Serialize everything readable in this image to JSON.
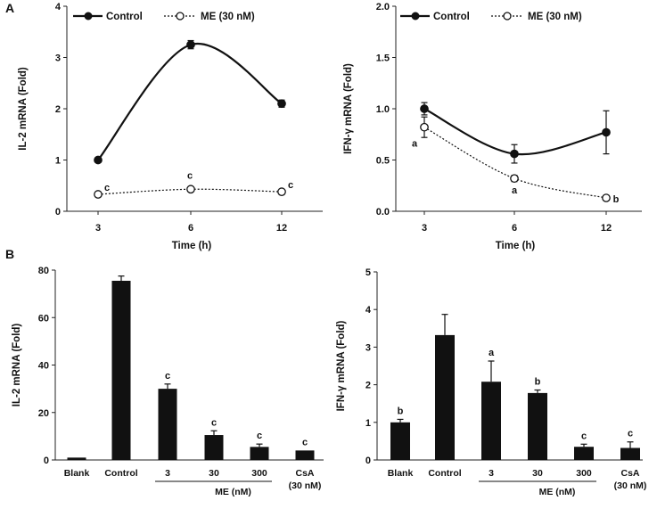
{
  "panel_labels": [
    "A",
    "B"
  ],
  "chart_data": [
    {
      "id": "a-left",
      "type": "line",
      "ylabel": "IL-2 mRNA (Fold)",
      "xlabel": "Time (h)",
      "x": [
        3,
        6,
        12
      ],
      "x_ticks": [
        "3",
        "6",
        "12"
      ],
      "ylim": [
        0,
        4
      ],
      "y_ticks": [
        "0",
        "1",
        "2",
        "3",
        "4"
      ],
      "legend": [
        "Control",
        "ME (30 nM)"
      ],
      "series": [
        {
          "name": "Control",
          "values": [
            1.0,
            3.25,
            2.1
          ],
          "errors": [
            0.05,
            0.08,
            0.07
          ],
          "labels": [
            "",
            "",
            ""
          ],
          "style": "solid-filled"
        },
        {
          "name": "ME (30 nM)",
          "values": [
            0.33,
            0.43,
            0.38
          ],
          "errors": [
            0.03,
            0.03,
            0.03
          ],
          "labels": [
            "c",
            "c",
            "c"
          ],
          "style": "dotted-open"
        }
      ]
    },
    {
      "id": "a-right",
      "type": "line",
      "ylabel": "IFN-γ mRNA (Fold)",
      "xlabel": "Time (h)",
      "x": [
        3,
        6,
        12
      ],
      "x_ticks": [
        "3",
        "6",
        "12"
      ],
      "ylim": [
        0,
        2.0
      ],
      "y_ticks": [
        "0.0",
        "0.5",
        "1.0",
        "1.5",
        "2.0"
      ],
      "legend": [
        "Control",
        "ME (30 nM)"
      ],
      "series": [
        {
          "name": "Control",
          "values": [
            1.0,
            0.56,
            0.77
          ],
          "errors": [
            0.06,
            0.09,
            0.21
          ],
          "labels": [
            "",
            "",
            ""
          ],
          "style": "solid-filled"
        },
        {
          "name": "ME (30 nM)",
          "values": [
            0.82,
            0.32,
            0.13
          ],
          "errors": [
            0.1,
            0.03,
            0.02
          ],
          "labels": [
            "a",
            "a",
            "b"
          ],
          "style": "dotted-open"
        }
      ]
    },
    {
      "id": "b-left",
      "type": "bar",
      "ylabel": "IL-2 mRNA (Fold)",
      "categories": [
        "Blank",
        "Control",
        "3",
        "30",
        "300",
        "CsA (30 nM)"
      ],
      "values": [
        1,
        75.5,
        30,
        10.5,
        5.5,
        4
      ],
      "errors": [
        0,
        2,
        2,
        1.8,
        1.2,
        0
      ],
      "labels": [
        "",
        "",
        "c",
        "c",
        "c",
        "c"
      ],
      "group_label": "ME (nM)",
      "ylim": [
        0,
        80
      ],
      "y_ticks": [
        "0",
        "20",
        "40",
        "60",
        "80"
      ]
    },
    {
      "id": "b-right",
      "type": "bar",
      "ylabel": "IFN-γ mRNA (Fold)",
      "categories": [
        "Blank",
        "Control",
        "3",
        "30",
        "300",
        "CsA (30 nM)"
      ],
      "values": [
        1.0,
        3.32,
        2.08,
        1.78,
        0.35,
        0.32
      ],
      "errors": [
        0.08,
        0.55,
        0.55,
        0.08,
        0.07,
        0.16
      ],
      "labels": [
        "b",
        "",
        "a",
        "b",
        "c",
        "c"
      ],
      "group_label": "ME (nM)",
      "ylim": [
        0,
        5
      ],
      "y_ticks": [
        "0",
        "1",
        "2",
        "3",
        "4",
        "5"
      ]
    }
  ]
}
